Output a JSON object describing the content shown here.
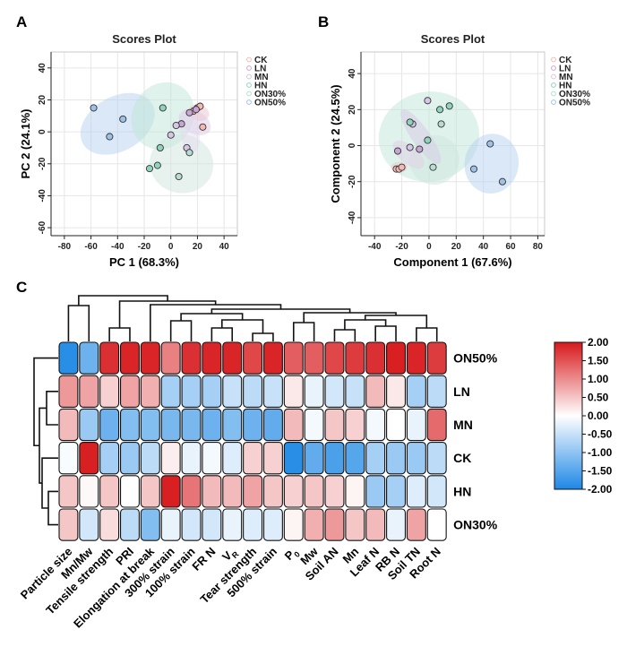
{
  "panels": {
    "a": "A",
    "b": "B",
    "c": "C"
  },
  "chart_data": [
    {
      "type": "scatter",
      "title": "Scores Plot",
      "xlabel": "PC 1 (68.3%)",
      "ylabel": "PC 2 (24.1%)",
      "xlim": [
        -90,
        50
      ],
      "ylim": [
        -65,
        50
      ],
      "xticks": [
        -80,
        -60,
        -40,
        -20,
        0,
        20,
        40
      ],
      "yticks": [
        -60,
        -40,
        -20,
        0,
        20,
        40
      ],
      "grid": true,
      "legend_position": "top-right",
      "series": [
        {
          "name": "CK",
          "color": "#f4b9b2",
          "points": [
            [
              17,
              13
            ],
            [
              20,
              15
            ],
            [
              22,
              16
            ],
            [
              24,
              3
            ]
          ]
        },
        {
          "name": "LN",
          "color": "#c9a5d6",
          "points": [
            [
              14,
              12
            ],
            [
              19,
              14
            ],
            [
              8,
              5
            ]
          ]
        },
        {
          "name": "MN",
          "color": "#d6c6e8",
          "points": [
            [
              0,
              -2
            ],
            [
              4,
              4
            ],
            [
              12,
              -10
            ]
          ]
        },
        {
          "name": "HN",
          "color": "#8fd3bf",
          "points": [
            [
              -8,
              -10
            ],
            [
              -16,
              -23
            ],
            [
              -10,
              -21
            ],
            [
              -6,
              15
            ]
          ]
        },
        {
          "name": "ON30%",
          "color": "#b8dcd2",
          "points": [
            [
              6,
              -28
            ],
            [
              14,
              -13
            ]
          ]
        },
        {
          "name": "ON50%",
          "color": "#9fc1e6",
          "points": [
            [
              -58,
              15
            ],
            [
              -46,
              -3
            ],
            [
              -36,
              8
            ]
          ]
        }
      ],
      "ellipses": [
        {
          "series": "ON50%",
          "color": "#b8d1ef"
        },
        {
          "series": "HN",
          "color": "#bfe6d8"
        },
        {
          "series": "ON30%",
          "color": "#cfe6df"
        },
        {
          "series": "LN",
          "color": "#dccbe6"
        },
        {
          "series": "CK",
          "color": "#e9c6cf"
        },
        {
          "series": "MN",
          "color": "#e3d9ee"
        }
      ]
    },
    {
      "type": "scatter",
      "title": "Scores Plot",
      "xlabel": "Component 1 (67.6%)",
      "ylabel": "Component 2 (24.5%)",
      "xlim": [
        -50,
        85
      ],
      "ylim": [
        -50,
        52
      ],
      "xticks": [
        -40,
        -20,
        0,
        20,
        40,
        60,
        80
      ],
      "yticks": [
        -40,
        -20,
        0,
        20,
        40
      ],
      "grid": true,
      "legend_position": "top-right",
      "series": [
        {
          "name": "CK",
          "color": "#f4b9b2",
          "points": [
            [
              -24,
              -13
            ],
            [
              -22,
              -13
            ],
            [
              -20,
              -12
            ]
          ]
        },
        {
          "name": "LN",
          "color": "#c9a5d6",
          "points": [
            [
              -23,
              -3
            ],
            [
              -7,
              -2
            ]
          ]
        },
        {
          "name": "MN",
          "color": "#d6c6e8",
          "points": [
            [
              -14,
              -1
            ],
            [
              -12,
              12
            ],
            [
              -1,
              25
            ]
          ]
        },
        {
          "name": "HN",
          "color": "#8fd3bf",
          "points": [
            [
              -14,
              13
            ],
            [
              -1,
              3
            ],
            [
              8,
              20
            ],
            [
              15,
              22
            ]
          ]
        },
        {
          "name": "ON30%",
          "color": "#b8dcd2",
          "points": [
            [
              3,
              -12
            ],
            [
              9,
              12
            ]
          ]
        },
        {
          "name": "ON50%",
          "color": "#9fc1e6",
          "points": [
            [
              33,
              -13
            ],
            [
              45,
              1
            ],
            [
              54,
              -20
            ]
          ]
        }
      ],
      "ellipses": [
        {
          "series": "HN",
          "color": "#bfe6d8"
        },
        {
          "series": "ON30%",
          "color": "#cfe6df"
        },
        {
          "series": "ON50%",
          "color": "#b8d1ef"
        },
        {
          "series": "MN",
          "color": "#d7c9e6"
        },
        {
          "series": "LN",
          "color": "#e1cde6"
        },
        {
          "series": "CK",
          "color": "#e9c6cf"
        }
      ]
    },
    {
      "type": "heatmap",
      "columns": [
        "Particle size",
        "Mn/Mw",
        "Tensile strength",
        "PRI",
        "Elongation at break",
        "300% strain",
        "100% strain",
        "FR N",
        "V_R",
        "Tear strength",
        "500% strain",
        "P_0",
        "Mw",
        "Soil AN",
        "Mn",
        "Leaf N",
        "RB N",
        "Soil TN",
        "Root N"
      ],
      "column_label_parts": {
        "V_R": {
          "main": "V",
          "sub": "R"
        },
        "P_0": {
          "main": "P",
          "sub": "0"
        }
      },
      "rows": [
        "ON50%",
        "LN",
        "MN",
        "CK",
        "HN",
        "ON30%"
      ],
      "values": [
        [
          -1.9,
          -1.3,
          1.8,
          1.9,
          1.9,
          1.1,
          1.8,
          1.9,
          1.9,
          1.6,
          1.9,
          1.4,
          1.4,
          1.6,
          1.7,
          1.8,
          1.95,
          1.9,
          1.7
        ],
        [
          0.9,
          0.8,
          0.4,
          0.8,
          0.7,
          -0.8,
          -0.8,
          -0.8,
          -0.5,
          -0.6,
          -0.5,
          0.2,
          -0.2,
          -0.4,
          -0.5,
          0.6,
          0.2,
          -0.8,
          -0.6
        ],
        [
          0.6,
          -0.9,
          -1.3,
          -1.1,
          -1.1,
          -1.2,
          -1.2,
          -1.3,
          -1.1,
          -1.3,
          -1.4,
          0.6,
          -0.1,
          0.5,
          0.4,
          -0.1,
          0.0,
          -0.2,
          1.3
        ],
        [
          -0.05,
          1.95,
          -0.8,
          -0.9,
          -0.6,
          0.15,
          -0.2,
          -0.1,
          -0.3,
          0.4,
          0.4,
          -1.9,
          -1.4,
          -1.6,
          -1.5,
          -0.8,
          -0.9,
          -0.9,
          -0.6
        ],
        [
          0.5,
          0.05,
          0.5,
          0.0,
          0.5,
          1.95,
          1.2,
          0.6,
          0.6,
          0.8,
          0.5,
          0.4,
          0.5,
          0.4,
          0.1,
          -0.9,
          -0.8,
          -0.3,
          -0.4
        ],
        [
          0.5,
          -0.4,
          0.3,
          -0.6,
          -1.1,
          -0.2,
          -0.4,
          -0.4,
          -0.2,
          -0.3,
          -0.3,
          0.1,
          0.7,
          0.9,
          0.5,
          0.6,
          -0.2,
          0.8,
          0.0
        ]
      ],
      "colorbar": {
        "ticks": [
          "2.00",
          "1.50",
          "1.00",
          "0.50",
          "0.00",
          "-0.50",
          "-1.00",
          "-1.50",
          "-2.00"
        ],
        "range": [
          -2,
          2
        ],
        "high_color": "#d7191c",
        "mid_color": "#ffffff",
        "low_color": "#1e88e5"
      }
    }
  ]
}
